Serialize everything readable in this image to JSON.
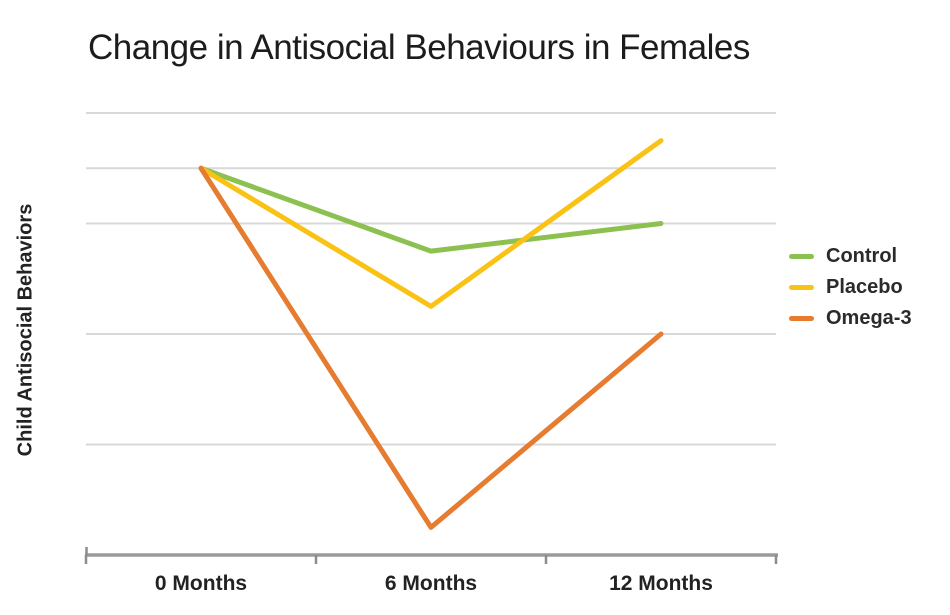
{
  "colors": {
    "background": "#ffffff",
    "gridline": "#d9d9d9",
    "axis": "#9a9a9a",
    "tick": "#8c8c8c",
    "title_text": "#1c1c1c",
    "label_text": "#222222",
    "legend_text": "#2b2b2b"
  },
  "chart_data": {
    "type": "line",
    "title": "Change in Antisocial Behaviours in Females",
    "ylabel": "Child Antisocial Behaviors",
    "xlabel": "",
    "categories": [
      "0 Months",
      "6 Months",
      "12 Months"
    ],
    "series": [
      {
        "name": "Control",
        "color": "#8cc152",
        "values": [
          7,
          5.5,
          6
        ]
      },
      {
        "name": "Placebo",
        "color": "#fbc216",
        "values": [
          7,
          4.5,
          7.5
        ]
      },
      {
        "name": "Omega-3",
        "color": "#e57c30",
        "values": [
          7,
          0.5,
          4
        ]
      }
    ],
    "ylim": [
      0,
      8
    ],
    "y_tick_labels": "none",
    "gridline_values": [
      2,
      4,
      6,
      7,
      8
    ],
    "grid": "horizontal",
    "legend_position": "right-middle",
    "draw_order": [
      "Control",
      "Placebo",
      "Omega-3"
    ],
    "value_scale_note": "y-axis unlabeled; values estimated on relative 0-8 scale from gridlines"
  }
}
